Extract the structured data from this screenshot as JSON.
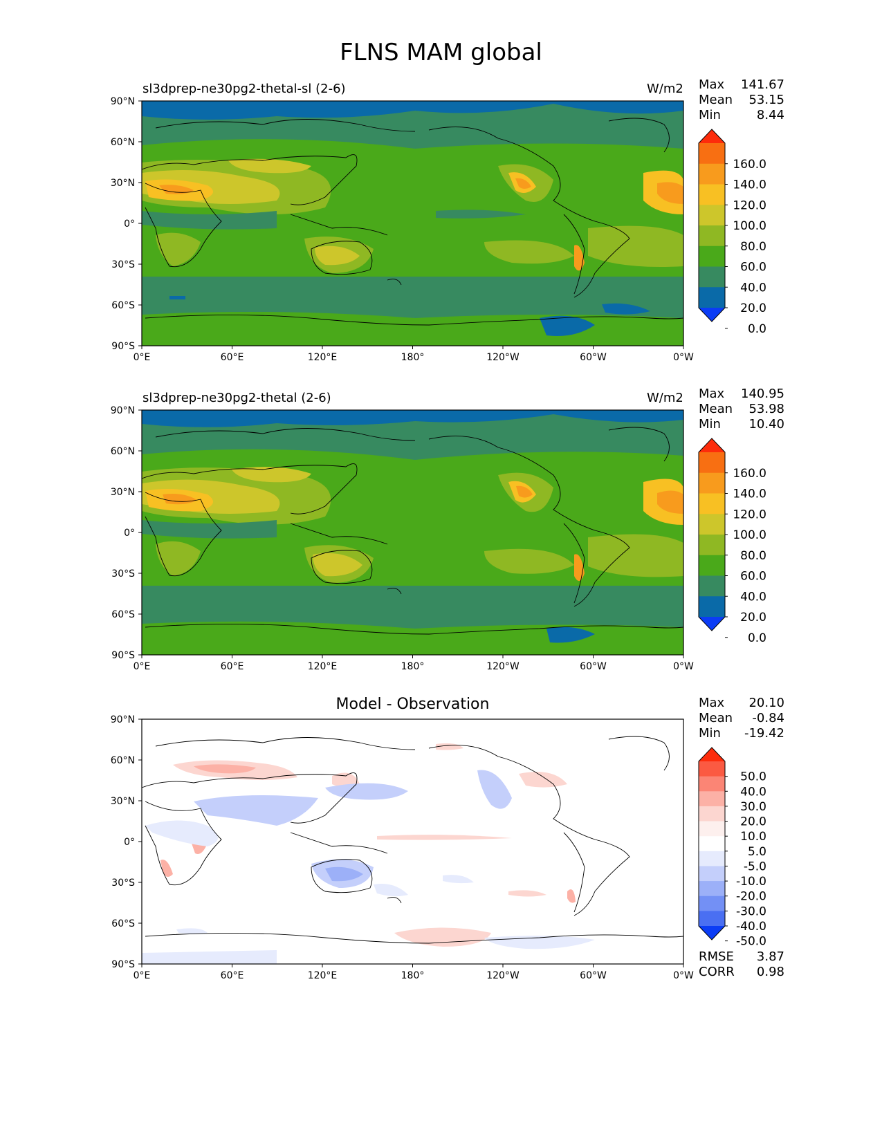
{
  "title": "FLNS MAM global",
  "xticks": [
    "0°E",
    "60°E",
    "120°E",
    "180°",
    "120°W",
    "60°W",
    "0°W"
  ],
  "yticks": [
    "90°N",
    "60°N",
    "30°N",
    "0°",
    "30°S",
    "60°S",
    "90°S"
  ],
  "colors": {
    "c_neg": "#0b3cf5",
    "c_0_20": "#0a6aa8",
    "c_20_40": "#378a60",
    "c_40_60": "#4aa91a",
    "c_60_80": "#8fb823",
    "c_80_100": "#cdc62b",
    "c_100_120": "#f8c023",
    "c_120_140": "#f89b1d",
    "c_140_160": "#f86f12",
    "c_160p": "#fd2c0b"
  },
  "panels": [
    {
      "id": "test",
      "left_title": "sl3dprep-ne30pg2-thetal-sl (2-6)",
      "units": "W/m2",
      "stats": {
        "max_label": "Max",
        "max": "141.67",
        "mean_label": "Mean",
        "mean": "53.15",
        "min_label": "Min",
        "min": "8.44"
      },
      "colorbar": {
        "labels": [
          "160.0",
          "140.0",
          "120.0",
          "100.0",
          "80.0",
          "60.0",
          "40.0",
          "20.0",
          "0.0"
        ],
        "colors": [
          "#fd2c0b",
          "#f86f12",
          "#f89b1d",
          "#f8c023",
          "#cdc62b",
          "#8fb823",
          "#4aa91a",
          "#378a60",
          "#0a6aa8",
          "#0b3cf5"
        ]
      }
    },
    {
      "id": "ref",
      "left_title": "sl3dprep-ne30pg2-thetal (2-6)",
      "units": "W/m2",
      "stats": {
        "max_label": "Max",
        "max": "140.95",
        "mean_label": "Mean",
        "mean": "53.98",
        "min_label": "Min",
        "min": "10.40"
      },
      "colorbar": {
        "labels": [
          "160.0",
          "140.0",
          "120.0",
          "100.0",
          "80.0",
          "60.0",
          "40.0",
          "20.0",
          "0.0"
        ],
        "colors": [
          "#fd2c0b",
          "#f86f12",
          "#f89b1d",
          "#f8c023",
          "#cdc62b",
          "#8fb823",
          "#4aa91a",
          "#378a60",
          "#0a6aa8",
          "#0b3cf5"
        ]
      }
    },
    {
      "id": "diff",
      "center_title": "Model - Observation",
      "stats": {
        "max_label": "Max",
        "max": "20.10",
        "mean_label": "Mean",
        "mean": "-0.84",
        "min_label": "Min",
        "min": "-19.42"
      },
      "colorbar": {
        "labels": [
          "50.0",
          "40.0",
          "30.0",
          "20.0",
          "10.0",
          "5.0",
          "-5.0",
          "-10.0",
          "-20.0",
          "-30.0",
          "-40.0",
          "-50.0"
        ],
        "colors": [
          "#fd2c0b",
          "#fb5a42",
          "#fb8575",
          "#fcb1a6",
          "#fcd6d0",
          "#fdf0ee",
          "#ffffff",
          "#e6ebfd",
          "#c4cffb",
          "#9cb0f8",
          "#7390f5",
          "#4a6ff2",
          "#0b3cf5"
        ]
      },
      "rmse_label": "RMSE",
      "rmse": "3.87",
      "corr_label": "CORR",
      "corr": "0.98"
    }
  ],
  "chart_data": [
    {
      "type": "heatmap",
      "title": "sl3dprep-ne30pg2-thetal-sl (2-6)",
      "units": "W/m2",
      "xrange": [
        0,
        360
      ],
      "yrange": [
        -90,
        90
      ],
      "levels": [
        0,
        20,
        40,
        60,
        80,
        100,
        120,
        140,
        160
      ],
      "max": 141.67,
      "mean": 53.15,
      "min": 8.44
    },
    {
      "type": "heatmap",
      "title": "sl3dprep-ne30pg2-thetal (2-6)",
      "units": "W/m2",
      "xrange": [
        0,
        360
      ],
      "yrange": [
        -90,
        90
      ],
      "levels": [
        0,
        20,
        40,
        60,
        80,
        100,
        120,
        140,
        160
      ],
      "max": 140.95,
      "mean": 53.98,
      "min": 10.4
    },
    {
      "type": "heatmap",
      "title": "Model - Observation",
      "xrange": [
        0,
        360
      ],
      "yrange": [
        -90,
        90
      ],
      "levels": [
        -50,
        -40,
        -30,
        -20,
        -10,
        -5,
        5,
        10,
        20,
        30,
        40,
        50
      ],
      "max": 20.1,
      "mean": -0.84,
      "min": -19.42,
      "rmse": 3.87,
      "corr": 0.98
    }
  ]
}
